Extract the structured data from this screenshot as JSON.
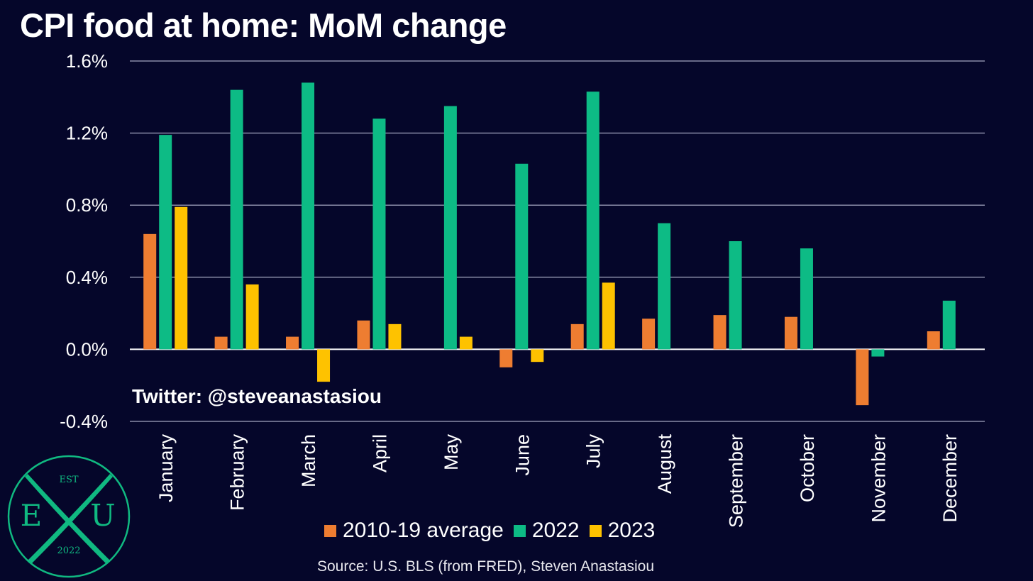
{
  "title": "CPI food at home: MoM change",
  "watermark": "Twitter: @steveanastasiou",
  "source": "Source: U.S. BLS (from FRED), Steven Anastasiou",
  "logo": {
    "top_text": "EST",
    "left_letter": "E",
    "right_letter": "U",
    "year": "2022",
    "color": "#10b981"
  },
  "colors": {
    "background": "#05062a",
    "gridline": "#8a8ca8",
    "zero_line": "#ffffff"
  },
  "chart_data": {
    "type": "bar",
    "title": "CPI food at home: MoM change",
    "xlabel": "",
    "ylabel": "",
    "ylim": [
      -0.4,
      1.6
    ],
    "yticks": [
      1.6,
      1.2,
      0.8,
      0.4,
      0.0,
      -0.4
    ],
    "ytick_labels": [
      "1.6%",
      "1.2%",
      "0.8%",
      "0.4%",
      "0.0%",
      "-0.4%"
    ],
    "grid": true,
    "legend_position": "bottom",
    "categories": [
      "January",
      "February",
      "March",
      "April",
      "May",
      "June",
      "July",
      "August",
      "September",
      "October",
      "November",
      "December"
    ],
    "series": [
      {
        "name": "2010-19 average",
        "color": "#ee7d31",
        "values": [
          0.64,
          0.07,
          0.07,
          0.16,
          null,
          -0.1,
          0.14,
          0.17,
          0.19,
          0.18,
          -0.31,
          0.1
        ]
      },
      {
        "name": "2022",
        "color": "#0dbb85",
        "values": [
          1.19,
          1.44,
          1.48,
          1.28,
          1.35,
          1.03,
          1.43,
          0.7,
          0.6,
          0.56,
          -0.04,
          0.27
        ]
      },
      {
        "name": "2023",
        "color": "#fec200",
        "values": [
          0.79,
          0.36,
          -0.18,
          0.14,
          0.07,
          -0.07,
          0.37,
          null,
          null,
          null,
          null,
          null
        ]
      }
    ]
  }
}
